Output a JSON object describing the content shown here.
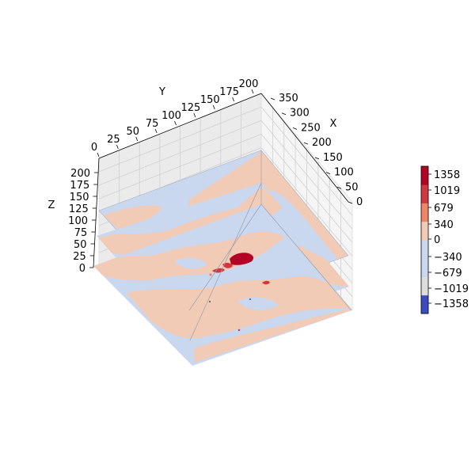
{
  "chart_data": {
    "type": "contourf-3d",
    "title": "",
    "axes": {
      "x": {
        "label": "X",
        "ticks": [
          "0",
          "50",
          "100",
          "150",
          "200",
          "250",
          "300",
          "350"
        ],
        "range": [
          0,
          350
        ]
      },
      "y": {
        "label": "Y",
        "ticks": [
          "0",
          "25",
          "50",
          "75",
          "100",
          "125",
          "150",
          "175",
          "200"
        ],
        "range": [
          0,
          200
        ]
      },
      "z": {
        "label": "Z",
        "ticks": [
          "0",
          "25",
          "50",
          "75",
          "100",
          "125",
          "150",
          "175",
          "200"
        ],
        "range": [
          0,
          200
        ]
      }
    },
    "grid": true,
    "colormap": "coolwarm",
    "colorbar": {
      "tick_labels": [
        "1358",
        "1019",
        "679",
        "340",
        "0",
        "−340",
        "−679",
        "−1019",
        "−1358"
      ],
      "levels": [
        -1358,
        -1019,
        -679,
        -340,
        0,
        340,
        679,
        1019,
        1358
      ],
      "colors": [
        "#3b4cc0",
        "#dcdddd",
        "#c9d7ef",
        "#c9d7ef",
        "#f2cbb7",
        "#ee8468",
        "#d0383f",
        "#b40426"
      ]
    },
    "slices": [
      {
        "axis": "z",
        "offset": 0,
        "dominant_ranges": [
          "-340 to 0",
          "0 to 340"
        ],
        "peak_range": "679 to 1358"
      },
      {
        "axis": "z",
        "offset": 100,
        "dominant_ranges": [
          "-340 to 0",
          "0 to 340"
        ]
      },
      {
        "axis": "z",
        "offset": 200,
        "dominant_ranges": [
          "-340 to 0",
          "0 to 340"
        ]
      }
    ]
  }
}
